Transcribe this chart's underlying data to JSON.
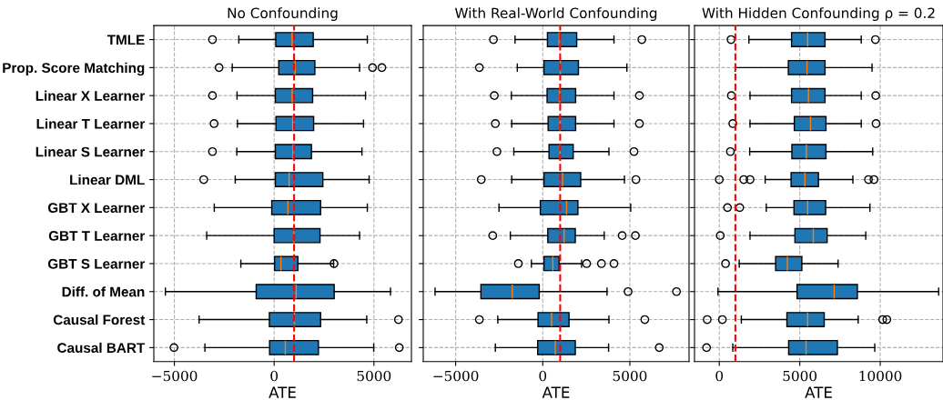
{
  "chart_data": [
    {
      "type": "box",
      "title": "No Confounding",
      "xlabel": "ATE",
      "orientation": "horizontal",
      "grid": true,
      "categories": [
        "TMLE",
        "Prop. Score Matching",
        "Linear X Learner",
        "Linear T Learner",
        "Linear S Learner",
        "Linear DML",
        "GBT X Learner",
        "GBT T Learner",
        "GBT S Learner",
        "Diff. of Mean",
        "Causal Forest",
        "Causal BART"
      ],
      "xlim": [
        -6030,
        6880
      ],
      "xticks": [
        {
          "value": -5000,
          "label": "−5000"
        },
        0,
        5000
      ],
      "ref_lines": [
        {
          "axis": "x",
          "value": 1000,
          "color": "#ff0000",
          "line_style": "dashed"
        }
      ],
      "series": [
        {
          "color": "#1f77b4",
          "boxes": [
            {
              "low": -1770,
              "q1": 80,
              "median": 900,
              "q3": 1960,
              "high": 4670,
              "outliers": [
                -3090
              ]
            },
            {
              "low": -2100,
              "q1": 230,
              "median": 1050,
              "q3": 2040,
              "high": 4280,
              "outliers": [
                -2760,
                4930,
                5400
              ]
            },
            {
              "low": -1860,
              "q1": 60,
              "median": 900,
              "q3": 1930,
              "high": 4580,
              "outliers": [
                -3090
              ]
            },
            {
              "low": -1840,
              "q1": 90,
              "median": 930,
              "q3": 1980,
              "high": 4480,
              "outliers": [
                -3010
              ]
            },
            {
              "low": -1870,
              "q1": 60,
              "median": 940,
              "q3": 1870,
              "high": 4400,
              "outliers": [
                -3090
              ]
            },
            {
              "low": -1950,
              "q1": 60,
              "median": 750,
              "q3": 2440,
              "high": 4760,
              "outliers": [
                -3530
              ]
            },
            {
              "low": -3000,
              "q1": -120,
              "median": 690,
              "q3": 2330,
              "high": 4670
            },
            {
              "low": -3380,
              "q1": 0,
              "median": 990,
              "q3": 2300,
              "high": 4280
            },
            {
              "low": -1670,
              "q1": 20,
              "median": 340,
              "q3": 1190,
              "high": 2980,
              "outliers": [
                3000
              ]
            },
            {
              "low": -5450,
              "q1": -900,
              "median": 1100,
              "q3": 3010,
              "high": 5830
            },
            {
              "low": -3760,
              "q1": -240,
              "median": 1020,
              "q3": 2330,
              "high": 4640,
              "outliers": [
                6230
              ]
            },
            {
              "low": -3470,
              "q1": -230,
              "median": 560,
              "q3": 2220,
              "high": 4990,
              "outliers": [
                -5020,
                6270
              ]
            }
          ]
        }
      ]
    },
    {
      "type": "box",
      "title": "With Real-World Confounding",
      "xlabel": "ATE",
      "orientation": "horizontal",
      "grid": true,
      "tick_labels": "x",
      "xlim": [
        -6860,
        8400
      ],
      "xticks": [
        {
          "value": -5000,
          "label": "−5000"
        },
        0,
        5000
      ],
      "ref_lines": [
        {
          "axis": "x",
          "value": 1000,
          "color": "#ff0000",
          "line_style": "dashed"
        }
      ],
      "series": [
        {
          "color": "#1f77b4",
          "boxes": [
            {
              "low": -1590,
              "q1": 270,
              "median": 940,
              "q3": 1950,
              "high": 4090,
              "outliers": [
                -2830,
                5690
              ]
            },
            {
              "low": -1460,
              "q1": 70,
              "median": 1010,
              "q3": 2050,
              "high": 4830,
              "outliers": [
                -3640
              ]
            },
            {
              "low": -1800,
              "q1": 250,
              "median": 960,
              "q3": 1890,
              "high": 4090,
              "outliers": [
                -2780,
                5550
              ]
            },
            {
              "low": -1780,
              "q1": 310,
              "median": 990,
              "q3": 1890,
              "high": 4090,
              "outliers": [
                -2720,
                5550
              ]
            },
            {
              "low": -1660,
              "q1": 360,
              "median": 990,
              "q3": 1750,
              "high": 3800,
              "outliers": [
                -2630,
                5240
              ]
            },
            {
              "low": -1780,
              "q1": 70,
              "median": 1140,
              "q3": 2180,
              "high": 4690,
              "outliers": [
                -3530,
                5350
              ]
            },
            {
              "low": -2510,
              "q1": -140,
              "median": 1370,
              "q3": 2020,
              "high": 5050
            },
            {
              "low": -1860,
              "q1": 290,
              "median": 1230,
              "q3": 1870,
              "high": 3530,
              "outliers": [
                -2870,
                4560,
                5320
              ]
            },
            {
              "low": -650,
              "q1": 70,
              "median": 580,
              "q3": 940,
              "high": 2230,
              "outliers": [
                -1400,
                2520,
                3370,
                4090
              ]
            },
            {
              "low": -6180,
              "q1": -3550,
              "median": -1750,
              "q3": -200,
              "high": 3690,
              "outliers": [
                4900,
                7680
              ]
            },
            {
              "low": -2580,
              "q1": -270,
              "median": 510,
              "q3": 1510,
              "high": 3800,
              "outliers": [
                -3640,
                5860
              ]
            },
            {
              "low": -2720,
              "q1": -290,
              "median": 720,
              "q3": 1870,
              "high": 3780,
              "outliers": [
                6690
              ]
            }
          ]
        }
      ]
    },
    {
      "type": "box",
      "title": "With Hidden Confounding ρ = 0.2",
      "xlabel": "ATE",
      "orientation": "horizontal",
      "grid": true,
      "tick_labels": "x",
      "xlim": [
        -1540,
        13900
      ],
      "xticks": [
        0,
        5000,
        10000
      ],
      "ref_lines": [
        {
          "axis": "x",
          "value": 1000,
          "color": "#ff0000",
          "line_style": "dashed"
        }
      ],
      "series": [
        {
          "color": "#1f77b4",
          "boxes": [
            {
              "low": 1840,
              "q1": 4490,
              "median": 5490,
              "q3": 6570,
              "high": 8820,
              "outliers": [
                730,
                9700
              ]
            },
            {
              "low": 990,
              "q1": 4290,
              "median": 5450,
              "q3": 6570,
              "high": 9490
            },
            {
              "low": 1910,
              "q1": 4490,
              "median": 5540,
              "q3": 6570,
              "high": 8820,
              "outliers": [
                750,
                9720
              ]
            },
            {
              "low": 1910,
              "q1": 4660,
              "median": 5670,
              "q3": 6630,
              "high": 8820,
              "outliers": [
                840,
                9740
              ]
            },
            {
              "low": 1890,
              "q1": 4510,
              "median": 5410,
              "q3": 6630,
              "high": 9530,
              "outliers": [
                690
              ]
            },
            {
              "low": 2850,
              "q1": 4460,
              "median": 5320,
              "q3": 6160,
              "high": 8300,
              "outliers": [
                0,
                1520,
                1910,
                9270,
                9610
              ]
            },
            {
              "low": 2920,
              "q1": 4640,
              "median": 5490,
              "q3": 6610,
              "high": 9360,
              "outliers": [
                510,
                1270
              ]
            },
            {
              "low": 1910,
              "q1": 4700,
              "median": 5840,
              "q3": 6700,
              "high": 9100,
              "outliers": [
                60
              ]
            },
            {
              "low": 1240,
              "q1": 3500,
              "median": 4230,
              "q3": 5130,
              "high": 7380,
              "outliers": [
                390
              ]
            },
            {
              "low": -80,
              "q1": 4830,
              "median": 7140,
              "q3": 8580,
              "high": 13630
            },
            {
              "low": 1370,
              "q1": 4200,
              "median": 5490,
              "q3": 6520,
              "high": 8630,
              "outliers": [
                -750,
                190,
                10150,
                10410
              ]
            },
            {
              "low": 840,
              "q1": 4310,
              "median": 5390,
              "q3": 7340,
              "high": 9660,
              "outliers": [
                -790
              ]
            }
          ]
        }
      ]
    }
  ]
}
